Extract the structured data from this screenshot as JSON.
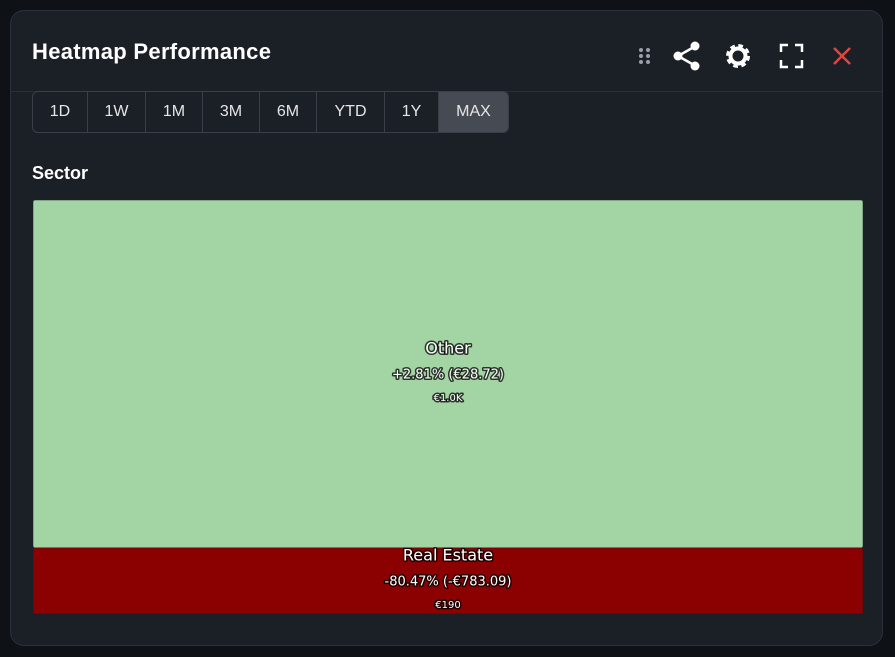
{
  "header": {
    "title": "Heatmap Performance"
  },
  "ranges": [
    "1D",
    "1W",
    "1M",
    "3M",
    "6M",
    "YTD",
    "1Y",
    "MAX"
  ],
  "chart_data": {
    "type": "treemap",
    "title": "Sector",
    "categories": [
      "Other",
      "Real Estate"
    ],
    "values": [
      1000,
      190
    ],
    "value_labels": [
      "€1.0K",
      "€190"
    ],
    "changes": [
      "+2.81% (€28.72)",
      "-80.47% (-€783.09)"
    ],
    "colors": [
      "#a3d4a3",
      "#8b0000"
    ]
  }
}
